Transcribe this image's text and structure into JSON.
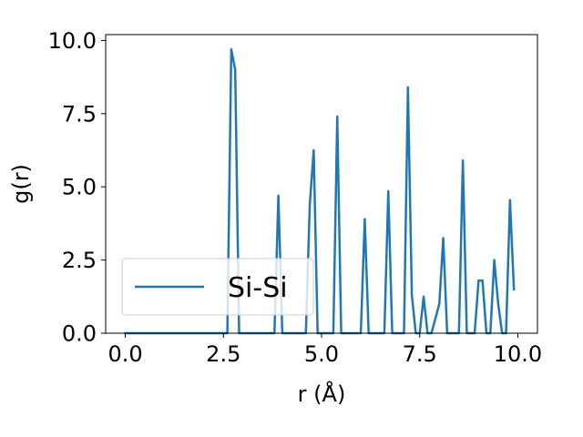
{
  "chart_data": {
    "type": "line",
    "title": "",
    "xlabel": "r (Å)",
    "ylabel": "g(r)",
    "xlim": [
      -0.5,
      10.5
    ],
    "ylim": [
      0.0,
      10.2
    ],
    "xticks": [
      "0.0",
      "2.5",
      "5.0",
      "7.5",
      "10.0"
    ],
    "yticks": [
      "0.0",
      "2.5",
      "5.0",
      "7.5",
      "10.0"
    ],
    "grid": false,
    "legend_position": "lower-left",
    "series": [
      {
        "name": "Si-Si",
        "color": "#1f77b4",
        "x": [
          0.0,
          2.6,
          2.7,
          2.8,
          2.9,
          3.8,
          3.9,
          4.0,
          4.6,
          4.7,
          4.8,
          4.9,
          5.3,
          5.4,
          5.5,
          6.0,
          6.1,
          6.2,
          6.6,
          6.7,
          6.8,
          7.1,
          7.2,
          7.3,
          7.4,
          7.5,
          7.6,
          7.7,
          7.8,
          8.0,
          8.1,
          8.2,
          8.3,
          8.5,
          8.6,
          8.7,
          8.9,
          9.0,
          9.1,
          9.2,
          9.3,
          9.4,
          9.5,
          9.6,
          9.7,
          9.8,
          9.9
        ],
        "y": [
          0.0,
          0.0,
          9.7,
          9.0,
          0.0,
          0.0,
          4.7,
          0.0,
          0.0,
          4.4,
          6.25,
          0.0,
          0.0,
          7.4,
          0.0,
          0.0,
          3.9,
          0.0,
          0.0,
          4.85,
          0.0,
          0.0,
          8.4,
          1.3,
          0.0,
          0.0,
          1.25,
          0.0,
          0.0,
          1.0,
          3.25,
          0.0,
          0.0,
          0.0,
          5.9,
          0.0,
          0.0,
          1.8,
          1.8,
          0.0,
          0.0,
          2.5,
          1.0,
          0.0,
          0.0,
          4.55,
          1.5
        ]
      }
    ]
  }
}
